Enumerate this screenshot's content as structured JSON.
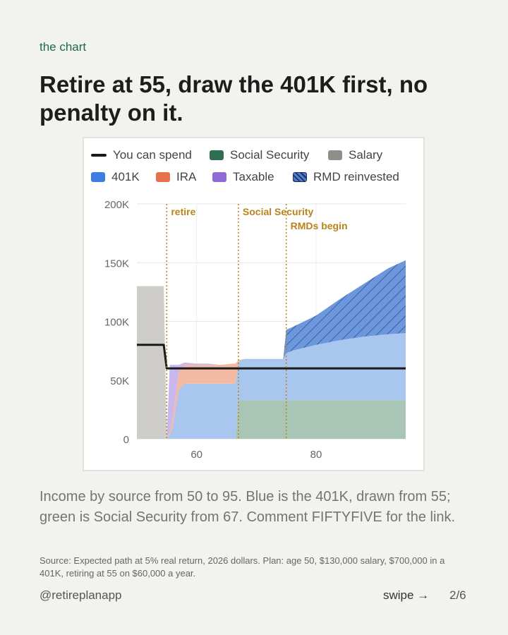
{
  "kicker": "the chart",
  "headline": "Retire at 55, draw the 401K first, no penalty on it.",
  "caption": "Income by source from 50 to 95. Blue is the 401K, drawn from 55; green is Social Security from 67. Comment FIFTYFIVE for the link.",
  "source": "Source: Expected path at 5% real return, 2026 dollars. Plan: age 50, $130,000 salary, $700,000 in a 401K, retiring at 55 on $60,000 a year.",
  "footer": {
    "handle": "@retireplanapp",
    "swipe": "swipe →",
    "page": "2/6"
  },
  "colors": {
    "spend": "#1a1a1a",
    "social_security": "#2f6f4f",
    "salary": "#8f8f8a",
    "k401": "#4c7fcf",
    "ira": "#e8704a",
    "taxable": "#8d6ad6",
    "rmd": "#4c7fcf",
    "marker": "#b8831a"
  },
  "legend": [
    {
      "label": "You can spend",
      "kind": "line",
      "color": "#1a1a1a"
    },
    {
      "label": "Social Security",
      "kind": "swatch",
      "color": "#2f6f4f"
    },
    {
      "label": "Salary",
      "kind": "swatch",
      "color": "#8f8f8a"
    },
    {
      "label": "401K",
      "kind": "swatch",
      "color": "#3b7de0"
    },
    {
      "label": "IRA",
      "kind": "swatch",
      "color": "#e8704a"
    },
    {
      "label": "Taxable",
      "kind": "swatch",
      "color": "#8d6ad6"
    },
    {
      "label": "RMD reinvested",
      "kind": "hatch",
      "color": "#4c7fcf"
    }
  ],
  "chart_data": {
    "type": "area",
    "x": [
      50,
      54,
      54.5,
      55,
      55.5,
      56,
      57,
      58,
      60,
      62,
      64,
      66,
      66.5,
      67,
      68,
      70,
      72,
      74,
      74.5,
      75,
      76,
      80,
      84,
      88,
      92,
      95
    ],
    "xlim": [
      50,
      95
    ],
    "ylim": [
      0,
      200000
    ],
    "x_ticks": [
      60,
      80
    ],
    "x_tick_labels": [
      "60",
      "80"
    ],
    "y_ticks": [
      0,
      50000,
      100000,
      150000,
      200000
    ],
    "y_tick_labels": [
      "0",
      "50K",
      "100K",
      "150K",
      "200K"
    ],
    "grid": true,
    "legend_position": "top",
    "series": [
      {
        "name": "Salary",
        "values": [
          130000,
          130000,
          130000,
          0,
          0,
          0,
          0,
          0,
          0,
          0,
          0,
          0,
          0,
          0,
          0,
          0,
          0,
          0,
          0,
          0,
          0,
          0,
          0,
          0,
          0,
          0
        ]
      },
      {
        "name": "Social Security",
        "values": [
          0,
          0,
          0,
          0,
          0,
          0,
          0,
          0,
          0,
          0,
          0,
          0,
          0,
          33000,
          33000,
          33000,
          33000,
          33000,
          33000,
          33000,
          33000,
          33000,
          33000,
          33000,
          33000,
          33000
        ]
      },
      {
        "name": "401K",
        "values": [
          0,
          0,
          0,
          0,
          3000,
          10000,
          42000,
          47000,
          47000,
          47000,
          47000,
          47000,
          47000,
          33000,
          35000,
          35000,
          35000,
          35000,
          35000,
          40000,
          42000,
          47000,
          51000,
          54000,
          56000,
          57000
        ]
      },
      {
        "name": "IRA",
        "values": [
          0,
          0,
          0,
          0,
          2000,
          8000,
          15000,
          16000,
          16000,
          16000,
          16000,
          17000,
          17000,
          1000,
          0,
          0,
          0,
          0,
          0,
          0,
          0,
          0,
          0,
          0,
          0,
          0
        ]
      },
      {
        "name": "Taxable",
        "values": [
          0,
          0,
          0,
          0,
          58000,
          45000,
          6000,
          2000,
          1000,
          1000,
          0,
          0,
          0,
          0,
          0,
          0,
          0,
          0,
          0,
          0,
          0,
          0,
          0,
          0,
          0,
          0
        ]
      },
      {
        "name": "RMD reinvested",
        "values": [
          0,
          0,
          0,
          0,
          0,
          0,
          0,
          0,
          0,
          0,
          0,
          0,
          0,
          0,
          0,
          0,
          0,
          0,
          0,
          20000,
          20000,
          25000,
          35000,
          45000,
          56000,
          62000
        ]
      },
      {
        "name": "You can spend",
        "values": [
          80000,
          80000,
          80000,
          60000,
          60000,
          60000,
          60000,
          60000,
          60000,
          60000,
          60000,
          60000,
          60000,
          60000,
          60000,
          60000,
          60000,
          60000,
          60000,
          60000,
          60000,
          60000,
          60000,
          60000,
          60000,
          60000
        ]
      }
    ],
    "markers": [
      {
        "x": 55,
        "label": "retire"
      },
      {
        "x": 67,
        "label": "Social Security"
      },
      {
        "x": 75,
        "label": "RMDs begin"
      }
    ]
  }
}
